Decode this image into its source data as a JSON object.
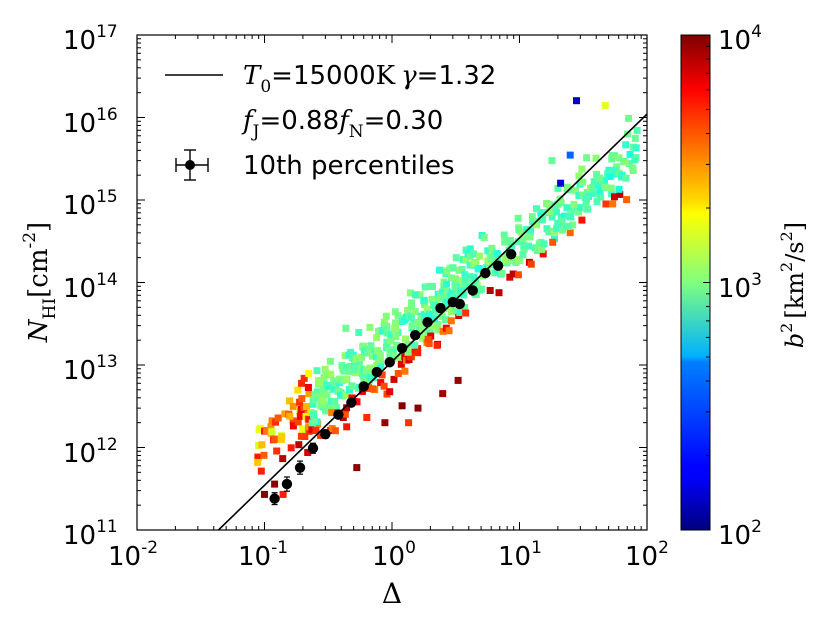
{
  "chart_data": {
    "type": "scatter",
    "x_scale": "log",
    "y_scale": "log",
    "xlim": [
      0.01,
      100
    ],
    "ylim": [
      100000000000.0,
      1e+17
    ],
    "x_tick_labels": [
      {
        "base": "10",
        "exp": "-2"
      },
      {
        "base": "10",
        "exp": "-1"
      },
      {
        "base": "10",
        "exp": "0"
      },
      {
        "base": "10",
        "exp": "1"
      },
      {
        "base": "10",
        "exp": "2"
      }
    ],
    "y_tick_labels": [
      {
        "base": "10",
        "exp": "11"
      },
      {
        "base": "10",
        "exp": "12"
      },
      {
        "base": "10",
        "exp": "13"
      },
      {
        "base": "10",
        "exp": "14"
      },
      {
        "base": "10",
        "exp": "15"
      },
      {
        "base": "10",
        "exp": "16"
      },
      {
        "base": "10",
        "exp": "17"
      }
    ],
    "xlabel": "Δ",
    "ylabel": {
      "main": "N",
      "sub": "HI",
      "unit": "[cm",
      "unit_sup": "-2",
      "unit_close": "]"
    },
    "legend": {
      "placement": "top-left",
      "line_label": {
        "sym1": "T",
        "sub1": "0",
        "eq1": "=15000",
        "unit": "K",
        "sym2": "γ",
        "eq2": "=1.32"
      },
      "params_label": {
        "sym1": "f",
        "sub1": "J",
        "eq1": "=0.88",
        "sym2": "f",
        "sub2": "N",
        "eq2": "=0.30"
      },
      "marker_label": "10th percentiles"
    },
    "power_law": {
      "T0_K": 15000,
      "gamma": 1.32,
      "y_at_x1": 11000000000000.0,
      "slope": 1.5
    },
    "percentiles": {
      "x": [
        0.12,
        0.15,
        0.19,
        0.24,
        0.3,
        0.38,
        0.48,
        0.6,
        0.76,
        0.96,
        1.2,
        1.52,
        1.9,
        2.4,
        3.0,
        3.4,
        4.3,
        5.4,
        6.8,
        8.6
      ],
      "y": [
        240000000000.0,
        360000000000.0,
        570000000000.0,
        980000000000.0,
        1450000000000.0,
        2500000000000.0,
        3500000000000.0,
        5500000000000.0,
        8200000000000.0,
        10800000000000.0,
        16000000000000.0,
        23000000000000.0,
        33000000000000.0,
        49000000000000.0,
        58000000000000.0,
        55000000000000.0,
        80000000000000.0,
        130000000000000.0,
        160000000000000.0,
        220000000000000.0
      ],
      "yerr_factor": [
        1.18,
        1.22,
        1.2,
        1.15,
        1.12,
        1.1,
        1.08,
        1.08,
        1.08,
        1.08,
        1.08,
        1.08,
        1.08,
        1.08,
        1.08,
        1.08,
        1.08,
        1.08,
        1.08,
        1.08
      ]
    },
    "colorbar": {
      "min": 100,
      "max": 10000,
      "scale": "log",
      "tick_labels": [
        {
          "base": "10",
          "exp": "2"
        },
        {
          "base": "10",
          "exp": "3"
        },
        {
          "base": "10",
          "exp": "4"
        }
      ],
      "label": {
        "sym": "b",
        "sym_sup": "2",
        "pre": "[km",
        "pre_sup": "2",
        "mid": "/s",
        "mid_sup": "2",
        "close": "]"
      }
    },
    "outlier_cells": [
      {
        "x": 28,
        "y": 1.6e+16,
        "b2": 140
      },
      {
        "x": 47,
        "y": 1.4e+16,
        "b2": 1600
      },
      {
        "x": 21,
        "y": 1600000000000000.0,
        "b2": 160
      },
      {
        "x": 25,
        "y": 3500000000000000.0,
        "b2": 280
      },
      {
        "x": 18,
        "y": 3000000000000000.0,
        "b2": 900
      },
      {
        "x": 0.12,
        "y": 360000000000.0,
        "b2": 9500
      },
      {
        "x": 0.1,
        "y": 270000000000.0,
        "b2": 9800
      },
      {
        "x": 0.14,
        "y": 270000000000.0,
        "b2": 5000
      },
      {
        "x": 3.3,
        "y": 6500000000000.0,
        "b2": 9000
      },
      {
        "x": 2.5,
        "y": 4500000000000.0,
        "b2": 8500
      },
      {
        "x": 1.6,
        "y": 3000000000000.0,
        "b2": 9500
      },
      {
        "x": 1.2,
        "y": 3200000000000.0,
        "b2": 9800
      },
      {
        "x": 0.53,
        "y": 570000000000.0,
        "b2": 9500
      },
      {
        "x": 0.36,
        "y": 1600000000000.0,
        "b2": 3800
      },
      {
        "x": 1.35,
        "y": 2000000000000.0,
        "b2": 4500
      },
      {
        "x": 0.88,
        "y": 2000000000000.0,
        "b2": 9000
      }
    ]
  }
}
